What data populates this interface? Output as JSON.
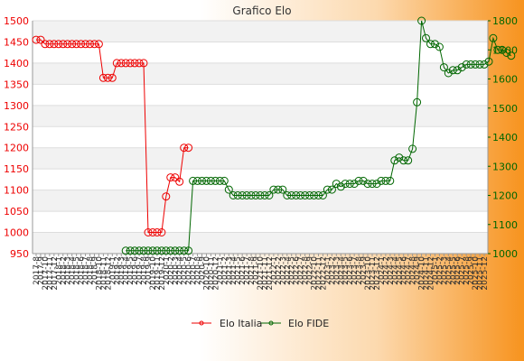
{
  "chart_data": {
    "type": "line",
    "title": "Grafico Elo",
    "legend_placement": "bottom",
    "grid": true,
    "y_left": {
      "min": 950,
      "max": 1500,
      "ticks": [
        950,
        1000,
        1050,
        1100,
        1150,
        1200,
        1250,
        1300,
        1350,
        1400,
        1450,
        1500
      ],
      "color": "#ee0000"
    },
    "y_right": {
      "min": 1000,
      "max": 1800,
      "ticks": [
        1000,
        1100,
        1200,
        1300,
        1400,
        1500,
        1600,
        1700,
        1800
      ],
      "color": "#006600"
    },
    "x_tick_labels": [
      "2017-8",
      "2017-9",
      "2017-10",
      "2017-11",
      "2017-12",
      "2018-1",
      "2018-2",
      "2018-3",
      "2018-4",
      "2018-5",
      "2018-6",
      "2018-7",
      "2018-8",
      "2018-9",
      "2018-10",
      "2018-11",
      "2018-12",
      "2019-1",
      "2019-2",
      "2019-3",
      "2019-4",
      "2019-5",
      "2019-6",
      "2019-7",
      "2019-8",
      "2019-9",
      "2019-10",
      "2019-11",
      "2019-12",
      "2020-1",
      "2020-2",
      "2020-3",
      "2020-4",
      "2020-5",
      "2020-6",
      "2020-7",
      "2020-8",
      "2020-9",
      "2020-10",
      "2020-11",
      "2020-12",
      "2021-1",
      "2021-2",
      "2021-3",
      "2021-4",
      "2021-5",
      "2021-6",
      "2021-7",
      "2021-8",
      "2021-9",
      "2021-10",
      "2021-11",
      "2021-12",
      "2022-1",
      "2022-2",
      "2022-3",
      "2022-4",
      "2022-5",
      "2022-6",
      "2022-7",
      "2022-8",
      "2022-9",
      "2022-10",
      "2022-11",
      "2022-12",
      "2023-1",
      "2023-2",
      "2023-3",
      "2023-4",
      "2023-5",
      "2023-6",
      "2023-7",
      "2023-8",
      "2023-9",
      "2023-10",
      "2023-11",
      "2023-12",
      "2024-1",
      "2024-2",
      "2024-3",
      "2024-4",
      "2024-5",
      "2024-6",
      "2024-7",
      "2024-8",
      "2024-9",
      "2024-10",
      "2024-11",
      "2024-12",
      "2025-1",
      "2025-2",
      "2025-3",
      "2025-4",
      "2025-5",
      "2025-6",
      "2025-7",
      "2025-8",
      "2025-9",
      "2025-10",
      "2025-11",
      "2025-12"
    ],
    "series": [
      {
        "name": "Elo Italia",
        "axis": "left",
        "color": "#ee0000",
        "start_index": 0,
        "values": [
          1455,
          1455,
          1445,
          1445,
          1445,
          1445,
          1445,
          1445,
          1445,
          1445,
          1445,
          1445,
          1445,
          1445,
          1445,
          1365,
          1365,
          1365,
          1400,
          1400,
          1400,
          1400,
          1400,
          1400,
          1400,
          1000,
          1000,
          1000,
          1000,
          1085,
          1130,
          1130,
          1120,
          1200,
          1200
        ]
      },
      {
        "name": "Elo FIDE",
        "axis": "right",
        "color": "#006600",
        "start_index": 20,
        "values": [
          1010,
          1010,
          1010,
          1010,
          1010,
          1010,
          1010,
          1010,
          1010,
          1010,
          1010,
          1010,
          1010,
          1010,
          1010,
          1250,
          1250,
          1250,
          1250,
          1250,
          1250,
          1250,
          1250,
          1220,
          1200,
          1200,
          1200,
          1200,
          1200,
          1200,
          1200,
          1200,
          1200,
          1220,
          1220,
          1220,
          1200,
          1200,
          1200,
          1200,
          1200,
          1200,
          1200,
          1200,
          1200,
          1220,
          1220,
          1240,
          1230,
          1240,
          1240,
          1240,
          1250,
          1250,
          1240,
          1240,
          1240,
          1250,
          1250,
          1250,
          1320,
          1330,
          1320,
          1320,
          1360,
          1520,
          1800,
          1740,
          1720,
          1720,
          1710,
          1640,
          1620,
          1630,
          1630,
          1640,
          1650,
          1650,
          1650,
          1650,
          1650,
          1660,
          1740,
          1700,
          1700,
          1690,
          1680
        ]
      }
    ]
  }
}
